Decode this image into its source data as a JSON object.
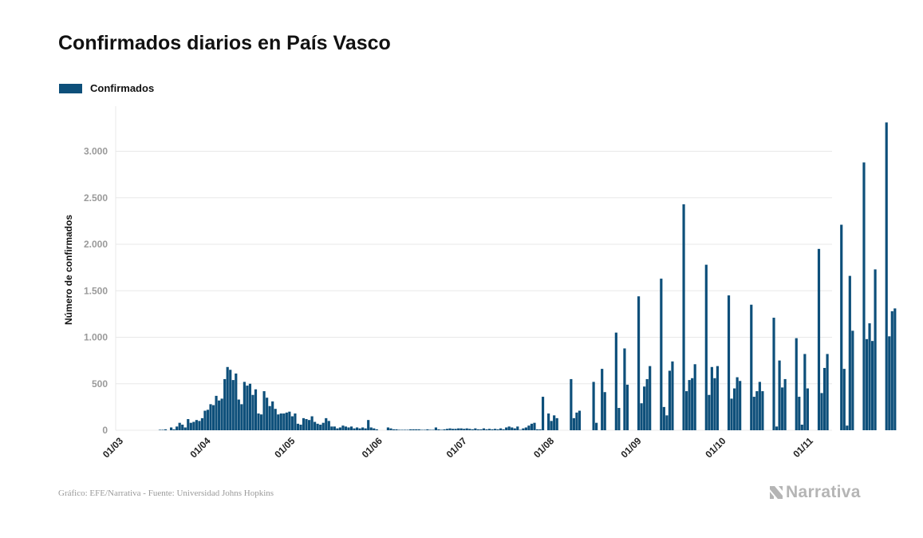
{
  "title": "Confirmados diarios en País Vasco",
  "footer": {
    "source": "Gráfico: EFE/Narrativa - Fuente: Universidad Johns Hopkins",
    "logo_text": "Narrativa"
  },
  "colors": {
    "bar": "#0d4f7a",
    "grid": "#e8e8e8",
    "axis_text": "#9a9a9a",
    "tick_text": "#222222"
  },
  "chart_data": {
    "type": "bar",
    "title": "Confirmados diarios en País Vasco",
    "ylabel": "Número de confirmados",
    "xlabel": "",
    "ylim": [
      0,
      3500
    ],
    "yticks": [
      0,
      500,
      1000,
      1500,
      2000,
      2500,
      3000
    ],
    "ytick_labels": [
      "0",
      "500",
      "1.000",
      "1.500",
      "2.000",
      "2.500",
      "3.000"
    ],
    "xtick_labels": [
      "01/03",
      "01/04",
      "01/05",
      "01/06",
      "01/07",
      "01/08",
      "01/09",
      "01/10",
      "01/11"
    ],
    "xtick_days": [
      0,
      31,
      61,
      92,
      122,
      153,
      184,
      214,
      245
    ],
    "x_start": "2020-03-01",
    "grid": true,
    "legend_position": "top-left",
    "series": [
      {
        "name": "Confirmados",
        "values": [
          0,
          0,
          0,
          0,
          0,
          0,
          0,
          0,
          0,
          0,
          0,
          0,
          0,
          5,
          5,
          10,
          0,
          30,
          10,
          40,
          80,
          60,
          30,
          120,
          80,
          90,
          110,
          100,
          130,
          210,
          220,
          280,
          270,
          370,
          320,
          340,
          550,
          680,
          650,
          540,
          610,
          330,
          280,
          520,
          480,
          500,
          380,
          440,
          180,
          170,
          420,
          350,
          260,
          310,
          230,
          170,
          180,
          180,
          190,
          200,
          150,
          180,
          70,
          60,
          130,
          120,
          110,
          150,
          90,
          70,
          60,
          80,
          130,
          100,
          40,
          40,
          20,
          30,
          50,
          40,
          30,
          40,
          20,
          30,
          20,
          30,
          20,
          110,
          30,
          20,
          10,
          0,
          0,
          0,
          30,
          20,
          10,
          10,
          5,
          5,
          5,
          5,
          10,
          10,
          10,
          10,
          5,
          5,
          10,
          5,
          5,
          30,
          10,
          5,
          10,
          15,
          20,
          15,
          15,
          20,
          20,
          15,
          20,
          15,
          10,
          20,
          10,
          10,
          20,
          10,
          15,
          10,
          15,
          10,
          20,
          10,
          30,
          40,
          30,
          20,
          40,
          5,
          20,
          30,
          50,
          70,
          80,
          10,
          10,
          360,
          0,
          180,
          100,
          160,
          130,
          0,
          0,
          0,
          0,
          550,
          130,
          190,
          210,
          0,
          0,
          0,
          0,
          520,
          80,
          0,
          660,
          410,
          0,
          0,
          0,
          1050,
          240,
          0,
          880,
          490,
          0,
          0,
          0,
          1440,
          290,
          470,
          550,
          690,
          0,
          0,
          0,
          1630,
          250,
          160,
          640,
          740,
          0,
          0,
          0,
          2430,
          420,
          540,
          560,
          710,
          0,
          0,
          0,
          1780,
          380,
          680,
          560,
          690,
          0,
          0,
          0,
          1450,
          340,
          450,
          570,
          530,
          0,
          0,
          0,
          1350,
          360,
          420,
          520,
          420,
          0,
          0,
          0,
          1210,
          40,
          750,
          460,
          550,
          0,
          0,
          0,
          990,
          360,
          60,
          820,
          450,
          0,
          0,
          0,
          1950,
          400,
          670,
          820,
          0,
          0,
          0,
          0,
          2210,
          660,
          50,
          1660,
          1070,
          0,
          0,
          0,
          2880,
          980,
          1150,
          960,
          1730,
          0,
          0,
          0,
          3310,
          1010,
          1280,
          1310
        ]
      }
    ]
  }
}
